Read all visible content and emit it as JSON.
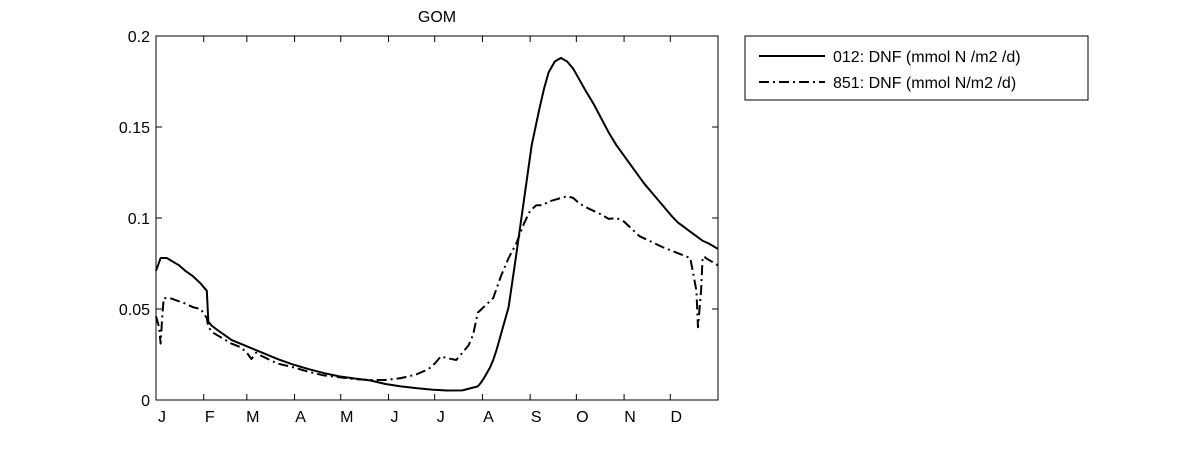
{
  "chart_data": {
    "type": "line",
    "title": "GOM",
    "xlabel": "",
    "ylabel": "",
    "x_tick_labels": [
      "J",
      "F",
      "M",
      "A",
      "M",
      "J",
      "J",
      "A",
      "S",
      "O",
      "N",
      "D"
    ],
    "y_ticks": [
      0,
      0.05,
      0.1,
      0.15,
      0.2
    ],
    "y_tick_labels": [
      "0",
      "0.05",
      "0.1",
      "0.15",
      "0.2"
    ],
    "xlim": [
      1,
      366
    ],
    "ylim": [
      0,
      0.2
    ],
    "grid": false,
    "legend_position": "outside-right-top",
    "series": [
      {
        "name": "012: DNF (mmol N /m2 /d)",
        "style": "solid",
        "color": "#000000",
        "x": [
          1,
          4,
          8,
          12,
          16,
          20,
          25,
          30,
          34,
          35,
          37,
          40,
          45,
          50,
          60,
          70,
          80,
          90,
          100,
          110,
          120,
          130,
          140,
          150,
          160,
          170,
          180,
          190,
          200,
          210,
          212,
          214,
          216,
          218,
          220,
          222,
          226,
          230,
          235,
          240,
          245,
          250,
          253,
          256,
          260,
          264,
          268,
          272,
          276,
          280,
          285,
          290,
          295,
          300,
          306,
          312,
          318,
          324,
          330,
          336,
          340,
          344,
          348,
          352,
          356,
          360,
          366
        ],
        "y": [
          0.071,
          0.078,
          0.078,
          0.076,
          0.074,
          0.071,
          0.068,
          0.064,
          0.06,
          0.043,
          0.041,
          0.039,
          0.036,
          0.033,
          0.0295,
          0.026,
          0.0225,
          0.0195,
          0.017,
          0.0148,
          0.013,
          0.0118,
          0.0108,
          0.0088,
          0.0075,
          0.0065,
          0.0057,
          0.0052,
          0.0053,
          0.0075,
          0.0095,
          0.012,
          0.015,
          0.018,
          0.022,
          0.027,
          0.039,
          0.051,
          0.08,
          0.11,
          0.14,
          0.16,
          0.171,
          0.18,
          0.186,
          0.188,
          0.186,
          0.182,
          0.176,
          0.17,
          0.163,
          0.155,
          0.147,
          0.14,
          0.133,
          0.126,
          0.119,
          0.113,
          0.107,
          0.101,
          0.0975,
          0.095,
          0.0925,
          0.09,
          0.0875,
          0.086,
          0.083
        ]
      },
      {
        "name": "851: DNF (mmol N/m2 /d)",
        "style": "dashdot",
        "color": "#000000",
        "x": [
          1,
          3,
          4,
          5,
          6,
          10,
          15,
          20,
          25,
          30,
          34,
          35,
          38,
          42,
          46,
          50,
          56,
          60,
          63,
          66,
          70,
          80,
          90,
          100,
          110,
          120,
          130,
          140,
          150,
          160,
          170,
          178,
          182,
          186,
          190,
          196,
          200,
          204,
          207,
          210,
          215,
          220,
          225,
          230,
          235,
          240,
          244,
          248,
          252,
          256,
          260,
          264,
          268,
          272,
          276,
          280,
          285,
          290,
          295,
          300,
          305,
          310,
          315,
          320,
          325,
          330,
          336,
          342,
          348,
          352,
          353,
          354,
          355,
          356,
          357,
          358,
          360,
          366
        ],
        "y": [
          0.046,
          0.04,
          0.031,
          0.045,
          0.056,
          0.056,
          0.0545,
          0.053,
          0.051,
          0.05,
          0.045,
          0.04,
          0.037,
          0.035,
          0.033,
          0.031,
          0.029,
          0.026,
          0.0225,
          0.026,
          0.024,
          0.02,
          0.018,
          0.0155,
          0.0135,
          0.0125,
          0.0115,
          0.011,
          0.011,
          0.012,
          0.014,
          0.017,
          0.02,
          0.024,
          0.023,
          0.022,
          0.026,
          0.03,
          0.036,
          0.048,
          0.052,
          0.056,
          0.068,
          0.078,
          0.086,
          0.097,
          0.104,
          0.107,
          0.107,
          0.109,
          0.11,
          0.111,
          0.112,
          0.111,
          0.108,
          0.106,
          0.104,
          0.102,
          0.0995,
          0.1,
          0.098,
          0.094,
          0.09,
          0.088,
          0.086,
          0.084,
          0.082,
          0.08,
          0.078,
          0.06,
          0.04,
          0.05,
          0.06,
          0.078,
          0.079,
          0.078,
          0.077,
          0.074
        ]
      }
    ]
  }
}
